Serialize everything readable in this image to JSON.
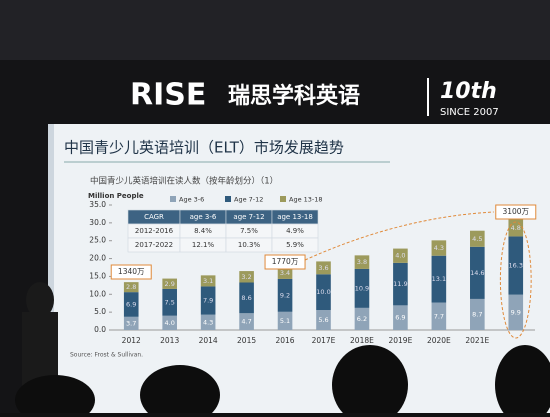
{
  "header": {
    "brand": "RISE",
    "brand_cn": "瑞思学科英语",
    "anniversary": "10th",
    "since": "SINCE 2007"
  },
  "chart_data": {
    "type": "stacked_bar",
    "title": "中国青少儿英语培训（ELT）市场发展趋势",
    "subtitle": "中国青少儿英语培训在读人数（按年龄划分）（1）",
    "y_label": "Million People",
    "categories": [
      "2012",
      "2013",
      "2014",
      "2015",
      "2016",
      "2017E",
      "2018E",
      "2019E",
      "2020E",
      "2021E",
      null
    ],
    "series": [
      {
        "name": "Age 3-6",
        "color": "#8fa4b8",
        "values": [
          3.7,
          4.0,
          4.3,
          4.7,
          5.1,
          5.6,
          6.2,
          6.9,
          7.7,
          8.7,
          9.9
        ],
        "value_labels": [
          "3.7",
          "4.0",
          "4.3",
          "4.7",
          "5.1",
          "5.6",
          "6.2",
          "6.9",
          "7.7",
          "8.7",
          "9.9"
        ]
      },
      {
        "name": "Age 7-12",
        "color": "#2f5a7c",
        "values": [
          6.9,
          7.5,
          7.9,
          8.6,
          9.2,
          10.0,
          10.9,
          11.9,
          13.1,
          14.6,
          16.3
        ],
        "value_labels": [
          "6.9",
          "7.5",
          "7.9",
          "8.6",
          "9.2",
          "10.0",
          "10.9",
          "11.9",
          "13.1",
          "14.6",
          "16.3"
        ]
      },
      {
        "name": "Age 13-18",
        "color": "#9c9a5c",
        "values": [
          2.8,
          2.9,
          3.1,
          3.2,
          3.4,
          3.6,
          3.8,
          4.0,
          4.3,
          4.5,
          4.8
        ],
        "value_labels": [
          "2.8",
          "2.9",
          "3.1",
          "3.2",
          "3.4",
          "3.6",
          "3.8",
          "4.0",
          "4.3",
          "4.5",
          "4.8"
        ]
      }
    ],
    "ylim": [
      0,
      35
    ],
    "yticks": [
      {
        "value": 0,
        "label": "0.0"
      },
      {
        "value": 5,
        "label": "5.0"
      },
      {
        "value": 10,
        "label": "10.0"
      },
      {
        "value": 15,
        "label": "15.0"
      },
      {
        "value": 20,
        "label": "20.0"
      },
      {
        "value": 25,
        "label": "25.0"
      },
      {
        "value": 30,
        "label": "30.0"
      },
      {
        "value": 35,
        "label": "35.0"
      }
    ],
    "annotations": [
      "1340万",
      "1770万",
      "3100万"
    ],
    "legend": "top",
    "source": "Source: Frost & Sullivan."
  },
  "table": {
    "header": [
      "CAGR",
      "age 3-6",
      "age 7-12",
      "age 13-18"
    ],
    "rows": [
      [
        "2012-2016",
        "8.4%",
        "7.5%",
        "4.9%"
      ],
      [
        "2017-2022",
        "12.1%",
        "10.3%",
        "5.9%"
      ]
    ]
  }
}
